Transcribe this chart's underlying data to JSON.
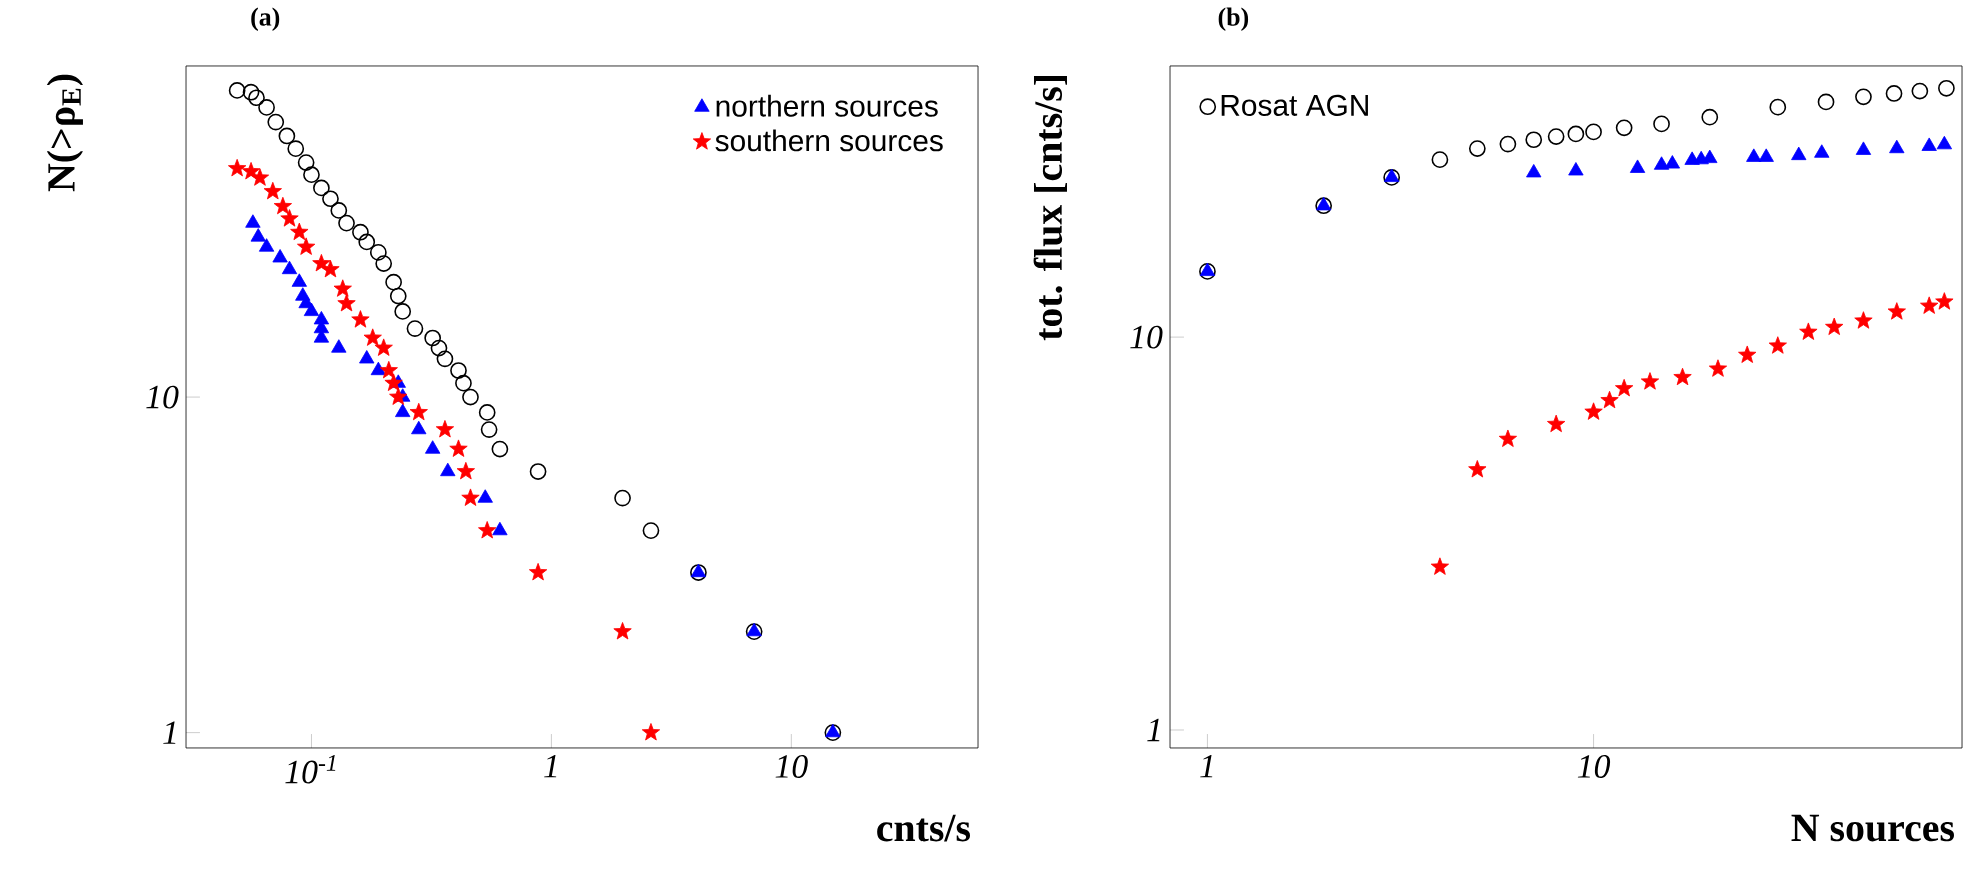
{
  "chart_data": [
    {
      "type": "scatter",
      "title": "(a)",
      "xlabel": "cnts/s",
      "ylabel": "N(>ρ$_{E}$)",
      "log": "xy",
      "xlim": [
        0.03,
        60
      ],
      "ylim": [
        0.9,
        97
      ],
      "xticks": [
        {
          "value": 0.1,
          "label": "10$^{-1}$"
        },
        1,
        10
      ],
      "yticks": [
        1,
        10
      ],
      "legend": "top right",
      "series": [
        {
          "color": "#000000",
          "marker": "circle",
          "x": [
            14.9,
            7.0,
            4.1,
            2.6,
            1.98,
            0.88,
            0.61,
            0.55,
            0.54,
            0.46,
            0.43,
            0.41,
            0.36,
            0.34,
            0.32,
            0.27,
            0.24,
            0.23,
            0.22,
            0.2,
            0.19,
            0.17,
            0.16,
            0.14,
            0.13,
            0.12,
            0.11,
            0.1,
            0.095,
            0.086,
            0.079,
            0.071,
            0.065,
            0.059,
            0.056,
            0.049
          ],
          "values": [
            1,
            2,
            3,
            4,
            5,
            6,
            7,
            8,
            9,
            10,
            11,
            12,
            13,
            14,
            15,
            16,
            18,
            20,
            22,
            25,
            27,
            29,
            31,
            33,
            36,
            39,
            42,
            46,
            50,
            55,
            60,
            66,
            73,
            78,
            81,
            82
          ]
        },
        {
          "name": "northern sources",
          "color": "#0000ff",
          "marker": "triangle",
          "x": [
            14.9,
            7.0,
            4.1,
            0.61,
            0.53,
            0.37,
            0.32,
            0.28,
            0.24,
            0.24,
            0.23,
            0.19,
            0.17,
            0.13,
            0.11,
            0.11,
            0.11,
            0.1,
            0.095,
            0.092,
            0.089,
            0.081,
            0.074,
            0.065,
            0.06,
            0.057
          ],
          "values": [
            1,
            2,
            3,
            4,
            5,
            6,
            7,
            8,
            9,
            10,
            11,
            12,
            13,
            14,
            15,
            16,
            17,
            18,
            19,
            20,
            22,
            24,
            26,
            28,
            30,
            33
          ]
        },
        {
          "name": "southern sources",
          "color": "#ff0000",
          "marker": "star",
          "x": [
            2.6,
            1.98,
            0.88,
            0.54,
            0.46,
            0.44,
            0.41,
            0.36,
            0.28,
            0.23,
            0.22,
            0.21,
            0.2,
            0.18,
            0.16,
            0.14,
            0.135,
            0.12,
            0.11,
            0.095,
            0.089,
            0.081,
            0.076,
            0.069,
            0.061,
            0.056,
            0.049
          ],
          "values": [
            1,
            2,
            3,
            4,
            5,
            6,
            7,
            8,
            9,
            10,
            11,
            12,
            14,
            15,
            17,
            19,
            21,
            24,
            25,
            28,
            31,
            34,
            37,
            41,
            45,
            47,
            48
          ]
        }
      ]
    },
    {
      "type": "scatter",
      "title": "(b)",
      "xlabel": "N sources",
      "ylabel": "tot. flux [cnts/s]",
      "log": "xy",
      "xlim": [
        0.8,
        90
      ],
      "ylim": [
        0.9,
        49
      ],
      "xticks": [
        1,
        10
      ],
      "yticks": [
        1,
        10
      ],
      "legend": "top left",
      "series": [
        {
          "name": "Rosat AGN",
          "color": "#000000",
          "marker": "circle",
          "x": [
            1,
            2,
            3,
            4,
            5,
            6,
            7,
            8,
            9,
            10,
            12,
            15,
            20,
            30,
            40,
            50,
            60,
            70,
            82
          ],
          "values": [
            14.7,
            21.6,
            25.5,
            28.3,
            30.2,
            31.0,
            31.8,
            32.4,
            32.9,
            33.3,
            34.1,
            34.9,
            36.3,
            38.5,
            39.7,
            40.9,
            41.7,
            42.3,
            43.0
          ]
        },
        {
          "color": "#0000ff",
          "marker": "triangle",
          "x": [
            1,
            2,
            3,
            7,
            9,
            13,
            15,
            16,
            18,
            19,
            20,
            26,
            28,
            34,
            39,
            50,
            61,
            74,
            81
          ],
          "values": [
            14.7,
            21.6,
            25.5,
            26.2,
            26.5,
            26.9,
            27.4,
            27.6,
            28.2,
            28.3,
            28.5,
            28.7,
            28.7,
            29.0,
            29.4,
            29.9,
            30.2,
            30.6,
            30.9
          ]
        },
        {
          "color": "#ff0000",
          "marker": "star",
          "x": [
            4,
            5,
            6,
            8,
            10,
            11,
            12,
            14,
            17,
            21,
            25,
            30,
            36,
            42,
            50,
            61,
            74,
            81
          ],
          "values": [
            2.6,
            4.6,
            5.5,
            6.0,
            6.45,
            6.9,
            7.4,
            7.7,
            7.9,
            8.3,
            9.0,
            9.5,
            10.3,
            10.6,
            11.0,
            11.6,
            12.0,
            12.3
          ]
        }
      ]
    }
  ]
}
